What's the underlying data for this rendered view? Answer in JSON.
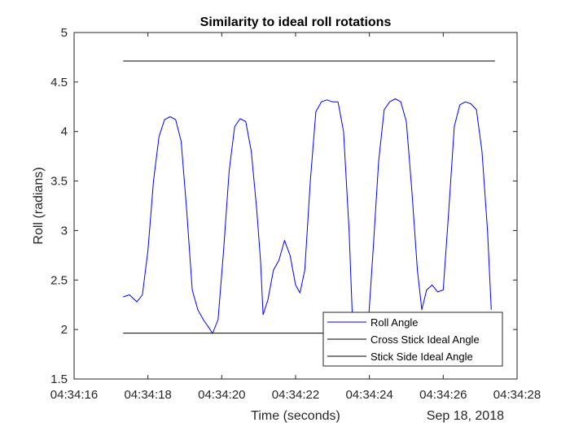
{
  "chart_data": {
    "type": "line",
    "title": "Similarity to ideal roll rotations",
    "xlabel": "Time (seconds)",
    "ylabel": "Roll (radians)",
    "date_label": "Sep 18, 2018",
    "xlim": [
      "04:34:16",
      "04:34:28"
    ],
    "ylim": [
      1.5,
      5
    ],
    "x_ticks": [
      "04:34:16",
      "04:34:18",
      "04:34:20",
      "04:34:22",
      "04:34:24",
      "04:34:26",
      "04:34:28"
    ],
    "y_ticks": [
      "1.5",
      "2",
      "2.5",
      "3",
      "3.5",
      "4",
      "4.5",
      "5"
    ],
    "grid": false,
    "legend_position": "bottom-right",
    "series": [
      {
        "name": "Roll Angle",
        "color": "#0000ff",
        "points": [
          [
            "04:34:17.33",
            2.33
          ],
          [
            "04:34:17.50",
            2.35
          ],
          [
            "04:34:17.70",
            2.28
          ],
          [
            "04:34:17.85",
            2.35
          ],
          [
            "04:34:18.00",
            2.8
          ],
          [
            "04:34:18.15",
            3.5
          ],
          [
            "04:34:18.30",
            3.95
          ],
          [
            "04:34:18.45",
            4.12
          ],
          [
            "04:34:18.60",
            4.15
          ],
          [
            "04:34:18.75",
            4.12
          ],
          [
            "04:34:18.90",
            3.9
          ],
          [
            "04:34:19.05",
            3.2
          ],
          [
            "04:34:19.20",
            2.4
          ],
          [
            "04:34:19.35",
            2.2
          ],
          [
            "04:34:19.50",
            2.1
          ],
          [
            "04:34:19.65",
            2.02
          ],
          [
            "04:34:19.75",
            1.96
          ],
          [
            "04:34:19.90",
            2.1
          ],
          [
            "04:34:20.05",
            2.8
          ],
          [
            "04:34:20.20",
            3.6
          ],
          [
            "04:34:20.35",
            4.05
          ],
          [
            "04:34:20.50",
            4.13
          ],
          [
            "04:34:20.65",
            4.1
          ],
          [
            "04:34:20.80",
            3.8
          ],
          [
            "04:34:20.95",
            3.2
          ],
          [
            "04:34:21.05",
            2.7
          ],
          [
            "04:34:21.12",
            2.15
          ],
          [
            "04:34:21.25",
            2.3
          ],
          [
            "04:34:21.40",
            2.6
          ],
          [
            "04:34:21.55",
            2.7
          ],
          [
            "04:34:21.70",
            2.9
          ],
          [
            "04:34:21.85",
            2.75
          ],
          [
            "04:34:22.00",
            2.45
          ],
          [
            "04:34:22.12",
            2.37
          ],
          [
            "04:34:22.25",
            2.6
          ],
          [
            "04:34:22.40",
            3.5
          ],
          [
            "04:34:22.55",
            4.2
          ],
          [
            "04:34:22.70",
            4.3
          ],
          [
            "04:34:22.85",
            4.32
          ],
          [
            "04:34:23.00",
            4.3
          ],
          [
            "04:34:23.15",
            4.3
          ],
          [
            "04:34:23.30",
            4.0
          ],
          [
            "04:34:23.45",
            3.0
          ],
          [
            "04:34:23.55",
            2.0
          ],
          [
            "04:34:23.95",
            1.95
          ],
          [
            "04:34:24.10",
            2.8
          ],
          [
            "04:34:24.25",
            3.7
          ],
          [
            "04:34:24.40",
            4.22
          ],
          [
            "04:34:24.55",
            4.3
          ],
          [
            "04:34:24.70",
            4.33
          ],
          [
            "04:34:24.85",
            4.3
          ],
          [
            "04:34:25.00",
            4.1
          ],
          [
            "04:34:25.15",
            3.4
          ],
          [
            "04:34:25.30",
            2.6
          ],
          [
            "04:34:25.42",
            2.2
          ],
          [
            "04:34:25.55",
            2.4
          ],
          [
            "04:34:25.70",
            2.45
          ],
          [
            "04:34:25.85",
            2.38
          ],
          [
            "04:34:26.00",
            2.4
          ],
          [
            "04:34:26.15",
            3.2
          ],
          [
            "04:34:26.30",
            4.05
          ],
          [
            "04:34:26.45",
            4.27
          ],
          [
            "04:34:26.60",
            4.3
          ],
          [
            "04:34:26.75",
            4.28
          ],
          [
            "04:34:26.90",
            4.22
          ],
          [
            "04:34:27.05",
            3.8
          ],
          [
            "04:34:27.20",
            3.0
          ],
          [
            "04:34:27.30",
            2.2
          ]
        ]
      },
      {
        "name": "Cross Stick Ideal Angle",
        "color": "#000000",
        "points": [
          [
            "04:34:17.33",
            1.9636
          ],
          [
            "04:34:27.40",
            1.9636
          ]
        ]
      },
      {
        "name": "Stick Side Ideal Angle",
        "color": "#000000",
        "points": [
          [
            "04:34:17.33",
            4.7124
          ],
          [
            "04:34:27.40",
            4.7124
          ]
        ]
      }
    ]
  }
}
